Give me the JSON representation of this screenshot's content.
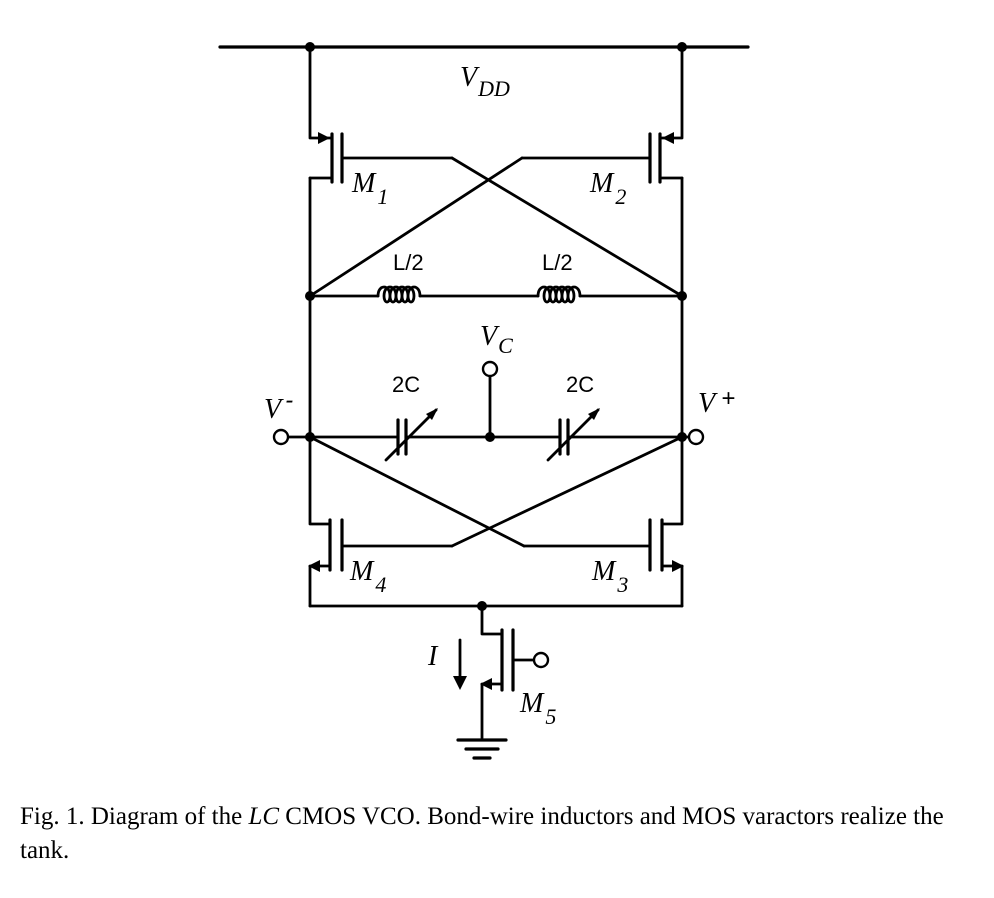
{
  "diagram": {
    "labels": {
      "vdd": "V",
      "vdd_sub": "DD",
      "m1": "M",
      "m1_sub": "1",
      "m2": "M",
      "m2_sub": "2",
      "m3": "M",
      "m3_sub": "3",
      "m4": "M",
      "m4_sub": "4",
      "m5": "M",
      "m5_sub": "5",
      "inductor_left": "L/2",
      "inductor_right": "L/2",
      "vc": "V",
      "vc_sub": "C",
      "cap_left": "2C",
      "cap_right": "2C",
      "vminus": "V",
      "vminus_sup": "-",
      "vplus": "V",
      "vplus_sup": "+",
      "current": "I"
    }
  },
  "caption": {
    "prefix": "Fig. 1.   Diagram of the ",
    "lc": "LC",
    "suffix": " CMOS VCO. Bond-wire inductors and MOS varactors realize the tank."
  }
}
